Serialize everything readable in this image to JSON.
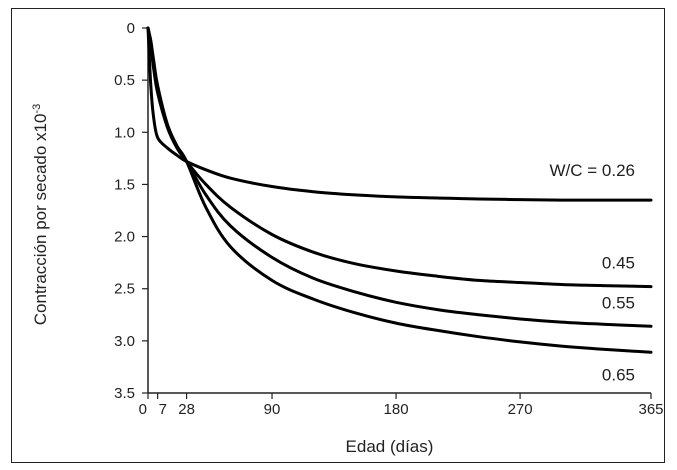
{
  "chart_data": {
    "type": "line",
    "title": "",
    "xlabel": "Edad (días)",
    "ylabel": "Contracción por secado x10",
    "ylabel_superscript": "-3",
    "x_ticks": [
      0,
      7,
      28,
      90,
      180,
      270,
      365
    ],
    "x_tick_labels": [
      "0",
      "7",
      "28",
      "90",
      "180",
      "270",
      "365"
    ],
    "y_ticks": [
      0,
      0.5,
      1.0,
      1.5,
      2.0,
      2.5,
      3.0,
      3.5
    ],
    "y_tick_labels": [
      "0",
      "0.5",
      "1.0",
      "1.5",
      "2.0",
      "2.5",
      "3.0",
      "3.5"
    ],
    "xlim": [
      0,
      365
    ],
    "ylim": [
      0,
      3.5
    ],
    "y_inverted": true,
    "grid": false,
    "line_color": "#000000",
    "series": [
      {
        "name": "W/C = 0.26",
        "x": [
          0,
          2,
          4,
          7,
          14,
          21,
          28,
          42,
          60,
          90,
          120,
          150,
          180,
          210,
          240,
          270,
          300,
          330,
          365
        ],
        "y": [
          0,
          0.55,
          0.85,
          1.05,
          1.15,
          1.22,
          1.28,
          1.36,
          1.44,
          1.52,
          1.57,
          1.6,
          1.62,
          1.63,
          1.64,
          1.645,
          1.65,
          1.65,
          1.65
        ]
      },
      {
        "name": "0.45",
        "x": [
          0,
          2,
          4,
          7,
          14,
          21,
          28,
          42,
          60,
          90,
          120,
          150,
          180,
          210,
          240,
          270,
          300,
          330,
          365
        ],
        "y": [
          0,
          0.18,
          0.38,
          0.62,
          0.95,
          1.15,
          1.28,
          1.5,
          1.72,
          1.98,
          2.15,
          2.26,
          2.33,
          2.38,
          2.42,
          2.44,
          2.46,
          2.47,
          2.48
        ]
      },
      {
        "name": "0.55",
        "x": [
          0,
          2,
          4,
          7,
          14,
          21,
          28,
          42,
          60,
          90,
          120,
          150,
          180,
          210,
          240,
          270,
          300,
          330,
          365
        ],
        "y": [
          0,
          0.15,
          0.33,
          0.58,
          0.93,
          1.14,
          1.28,
          1.6,
          1.9,
          2.2,
          2.4,
          2.53,
          2.63,
          2.7,
          2.75,
          2.79,
          2.82,
          2.84,
          2.86
        ]
      },
      {
        "name": "0.65",
        "x": [
          0,
          2,
          4,
          7,
          14,
          21,
          28,
          42,
          60,
          90,
          120,
          150,
          180,
          210,
          240,
          270,
          300,
          330,
          365
        ],
        "y": [
          0,
          0.12,
          0.3,
          0.55,
          0.92,
          1.13,
          1.28,
          1.72,
          2.1,
          2.42,
          2.6,
          2.73,
          2.83,
          2.9,
          2.96,
          3.01,
          3.05,
          3.08,
          3.11
        ]
      }
    ]
  }
}
